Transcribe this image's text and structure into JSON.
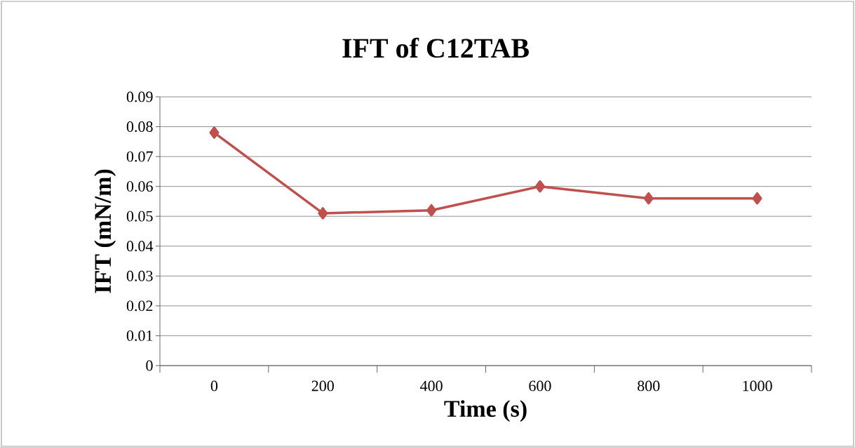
{
  "chart_data": {
    "type": "line",
    "title": "IFT of C12TAB",
    "xlabel": "Time (s)",
    "ylabel": "IFT (mN/m)",
    "categories": [
      "0",
      "200",
      "400",
      "600",
      "800",
      "1000"
    ],
    "series": [
      {
        "color": "#c0504d",
        "values": [
          0.078,
          0.051,
          0.052,
          0.06,
          0.056,
          0.056
        ]
      }
    ],
    "ylim": [
      0,
      0.09
    ],
    "yticks": [
      0,
      0.01,
      0.02,
      0.03,
      0.04,
      0.05,
      0.06,
      0.07,
      0.08,
      0.09
    ],
    "grid": "y",
    "marker": "diamond",
    "line_style": "solid"
  }
}
